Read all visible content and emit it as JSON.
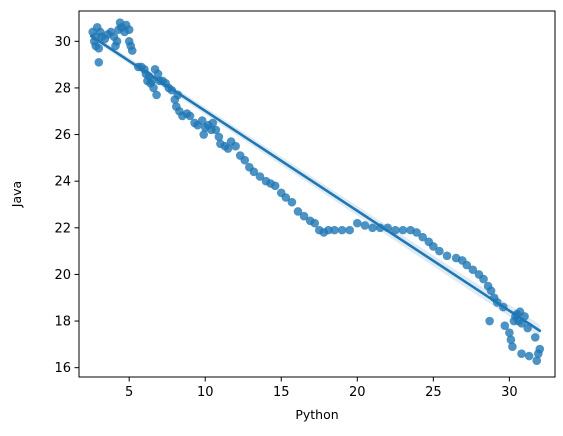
{
  "chart_data": {
    "type": "scatter",
    "xlabel": "Python",
    "ylabel": "Java",
    "xlim": [
      1.7,
      33.0
    ],
    "ylim": [
      15.6,
      31.3
    ],
    "xticks": [
      "5",
      "10",
      "15",
      "20",
      "25",
      "30"
    ],
    "yticks": [
      "16",
      "18",
      "20",
      "22",
      "24",
      "26",
      "28",
      "30"
    ],
    "grid": false,
    "legend": "none",
    "point_color": "#1f77b4",
    "regression": {
      "slope": -0.4286,
      "intercept": 31.3,
      "x_range": [
        2.5,
        32.0
      ]
    },
    "series": [
      {
        "points": [
          [
            2.6,
            30.4
          ],
          [
            2.7,
            30.0
          ],
          [
            2.8,
            29.8
          ],
          [
            2.8,
            30.2
          ],
          [
            2.9,
            30.6
          ],
          [
            3.0,
            29.7
          ],
          [
            3.0,
            29.1
          ],
          [
            3.1,
            30.4
          ],
          [
            3.2,
            30.2
          ],
          [
            3.4,
            30.1
          ],
          [
            3.6,
            30.3
          ],
          [
            3.8,
            30.4
          ],
          [
            4.0,
            30.2
          ],
          [
            4.1,
            29.8
          ],
          [
            4.2,
            30.0
          ],
          [
            4.3,
            30.5
          ],
          [
            4.4,
            30.8
          ],
          [
            4.5,
            30.6
          ],
          [
            4.7,
            30.4
          ],
          [
            4.8,
            30.7
          ],
          [
            5.0,
            30.5
          ],
          [
            5.0,
            30.0
          ],
          [
            5.1,
            29.8
          ],
          [
            5.2,
            29.6
          ],
          [
            5.6,
            28.9
          ],
          [
            5.8,
            28.9
          ],
          [
            6.0,
            28.8
          ],
          [
            6.1,
            28.6
          ],
          [
            6.2,
            28.3
          ],
          [
            6.3,
            28.5
          ],
          [
            6.4,
            28.2
          ],
          [
            6.5,
            28.3
          ],
          [
            6.6,
            28.0
          ],
          [
            6.7,
            28.8
          ],
          [
            6.8,
            27.7
          ],
          [
            6.9,
            28.6
          ],
          [
            7.0,
            28.3
          ],
          [
            7.2,
            28.3
          ],
          [
            7.4,
            28.2
          ],
          [
            7.6,
            28.0
          ],
          [
            7.8,
            27.9
          ],
          [
            8.0,
            27.5
          ],
          [
            8.1,
            27.2
          ],
          [
            8.2,
            27.7
          ],
          [
            8.3,
            27.0
          ],
          [
            8.5,
            26.8
          ],
          [
            8.8,
            26.9
          ],
          [
            9.0,
            26.8
          ],
          [
            9.3,
            26.5
          ],
          [
            9.5,
            26.4
          ],
          [
            9.8,
            26.6
          ],
          [
            9.9,
            26.0
          ],
          [
            10.0,
            26.3
          ],
          [
            10.2,
            26.4
          ],
          [
            10.4,
            26.2
          ],
          [
            10.5,
            26.5
          ],
          [
            10.7,
            26.2
          ],
          [
            10.9,
            25.9
          ],
          [
            11.0,
            25.6
          ],
          [
            11.3,
            25.5
          ],
          [
            11.5,
            25.4
          ],
          [
            11.7,
            25.7
          ],
          [
            12.0,
            25.5
          ],
          [
            12.3,
            25.1
          ],
          [
            12.6,
            24.9
          ],
          [
            12.9,
            24.6
          ],
          [
            13.2,
            24.4
          ],
          [
            13.6,
            24.2
          ],
          [
            14.0,
            24.0
          ],
          [
            14.3,
            23.9
          ],
          [
            14.6,
            23.8
          ],
          [
            15.0,
            23.5
          ],
          [
            15.3,
            23.3
          ],
          [
            15.7,
            23.1
          ],
          [
            16.1,
            22.7
          ],
          [
            16.5,
            22.5
          ],
          [
            16.9,
            22.3
          ],
          [
            17.2,
            22.2
          ],
          [
            17.5,
            21.9
          ],
          [
            17.8,
            21.8
          ],
          [
            18.1,
            21.9
          ],
          [
            18.5,
            21.9
          ],
          [
            19.0,
            21.9
          ],
          [
            19.5,
            21.9
          ],
          [
            20.0,
            22.2
          ],
          [
            20.5,
            22.1
          ],
          [
            21.0,
            22.0
          ],
          [
            21.5,
            22.0
          ],
          [
            22.0,
            22.0
          ],
          [
            22.5,
            21.9
          ],
          [
            23.0,
            21.9
          ],
          [
            23.5,
            21.9
          ],
          [
            23.9,
            21.8
          ],
          [
            24.3,
            21.6
          ],
          [
            24.7,
            21.4
          ],
          [
            25.0,
            21.2
          ],
          [
            25.4,
            21.0
          ],
          [
            25.9,
            20.8
          ],
          [
            26.5,
            20.7
          ],
          [
            26.9,
            20.6
          ],
          [
            27.2,
            20.4
          ],
          [
            27.6,
            20.2
          ],
          [
            28.0,
            20.0
          ],
          [
            28.3,
            19.8
          ],
          [
            28.6,
            19.5
          ],
          [
            28.8,
            19.3
          ],
          [
            29.0,
            19.0
          ],
          [
            29.2,
            18.8
          ],
          [
            28.7,
            18.0
          ],
          [
            29.6,
            18.6
          ],
          [
            29.7,
            17.8
          ],
          [
            30.0,
            17.5
          ],
          [
            30.1,
            17.2
          ],
          [
            30.2,
            16.9
          ],
          [
            30.3,
            18.0
          ],
          [
            30.4,
            18.2
          ],
          [
            30.5,
            18.3
          ],
          [
            30.6,
            18.0
          ],
          [
            30.7,
            18.4
          ],
          [
            30.8,
            17.9
          ],
          [
            30.8,
            16.6
          ],
          [
            31.0,
            18.2
          ],
          [
            31.2,
            17.7
          ],
          [
            31.3,
            16.5
          ],
          [
            31.7,
            17.3
          ],
          [
            31.8,
            16.3
          ],
          [
            31.9,
            16.6
          ],
          [
            32.0,
            16.8
          ]
        ]
      }
    ]
  }
}
